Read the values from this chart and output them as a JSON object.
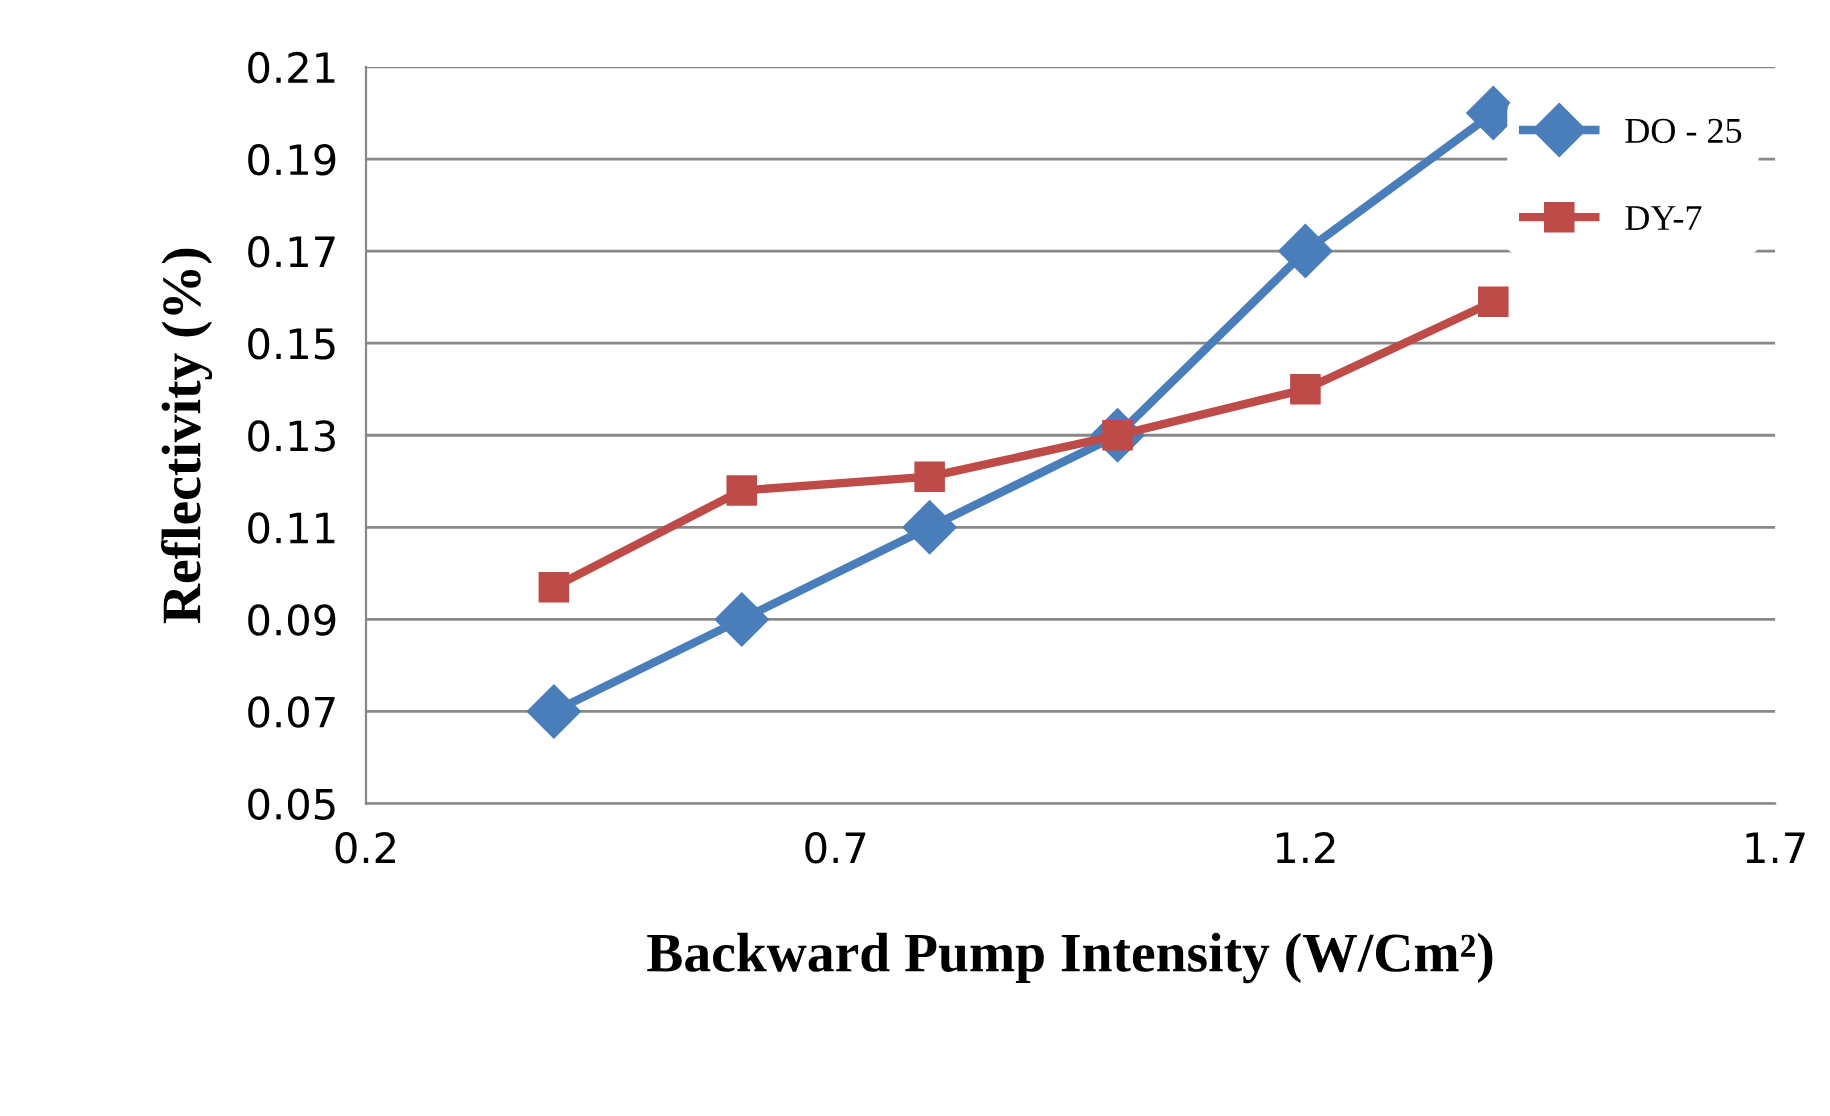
{
  "chart_data": {
    "type": "line",
    "xlabel": "Backward Pump Intensity (W/Cm²)",
    "ylabel": "Reflectivity (%)",
    "x": [
      0.4,
      0.6,
      0.8,
      1.0,
      1.2,
      1.4
    ],
    "series": [
      {
        "name": "DO - 25",
        "color": "#4a7ebb",
        "marker": "diamond",
        "values": [
          0.07,
          0.09,
          0.11,
          0.13,
          0.17,
          0.2
        ]
      },
      {
        "name": "DY-7",
        "color": "#be4b48",
        "marker": "square",
        "values": [
          0.097,
          0.118,
          0.121,
          0.13,
          0.14,
          0.159
        ]
      }
    ],
    "xlim": [
      0.2,
      1.7
    ],
    "xticks": [
      0.2,
      0.7,
      1.2,
      1.7
    ],
    "ylim": [
      0.05,
      0.21
    ],
    "yticks": [
      0.05,
      0.07,
      0.09,
      0.11,
      0.13,
      0.15,
      0.17,
      0.19,
      0.21
    ],
    "grid": "y",
    "legend": "right",
    "line_style": "solid"
  }
}
